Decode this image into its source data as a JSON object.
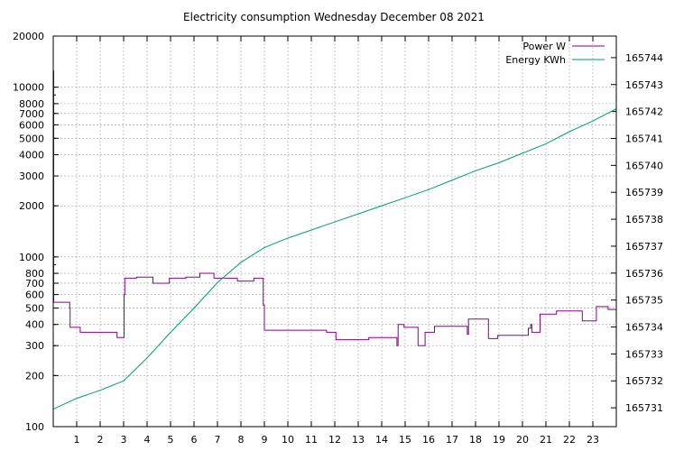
{
  "chart_data": {
    "type": "line",
    "title": "Electricity consumption Wednesday December 08 2021",
    "xlabel": "",
    "ylabel": "",
    "y2label": "",
    "grid": true,
    "legend_position": "top-right",
    "x_range": [
      0,
      24
    ],
    "x_ticks": [
      "1",
      "2",
      "3",
      "4",
      "5",
      "6",
      "7",
      "8",
      "9",
      "10",
      "11",
      "12",
      "13",
      "14",
      "15",
      "16",
      "17",
      "18",
      "19",
      "20",
      "21",
      "22",
      "23"
    ],
    "y_scale": "log",
    "y_range": [
      100,
      20000
    ],
    "y_ticks": [
      "100",
      "200",
      "300",
      "400",
      "500",
      "600",
      "700",
      "800",
      "1000",
      "2000",
      "3000",
      "4000",
      "5000",
      "6000",
      "7000",
      "8000",
      "10000",
      "20000"
    ],
    "y2_range": [
      165730.3,
      165744.8
    ],
    "y2_ticks": [
      "165731",
      "165732",
      "165733",
      "165734",
      "165735",
      "165736",
      "165737",
      "165738",
      "165739",
      "165740",
      "165741",
      "165742",
      "165743",
      "165744"
    ],
    "series": [
      {
        "name": "Power W",
        "axis": "left",
        "color": "#8b008b",
        "step": true,
        "points": [
          [
            0,
            12500
          ],
          [
            0.02,
            540
          ],
          [
            0.65,
            540
          ],
          [
            0.7,
            500
          ],
          [
            0.72,
            385
          ],
          [
            1.1,
            385
          ],
          [
            1.15,
            360
          ],
          [
            2.7,
            360
          ],
          [
            2.72,
            335
          ],
          [
            3.0,
            335
          ],
          [
            3.02,
            600
          ],
          [
            3.05,
            750
          ],
          [
            3.5,
            750
          ],
          [
            3.55,
            760
          ],
          [
            4.2,
            760
          ],
          [
            4.25,
            700
          ],
          [
            4.9,
            700
          ],
          [
            4.95,
            750
          ],
          [
            5.6,
            750
          ],
          [
            5.65,
            760
          ],
          [
            6.2,
            760
          ],
          [
            6.25,
            800
          ],
          [
            6.8,
            800
          ],
          [
            6.85,
            750
          ],
          [
            7.8,
            750
          ],
          [
            7.85,
            720
          ],
          [
            8.5,
            720
          ],
          [
            8.55,
            750
          ],
          [
            8.9,
            750
          ],
          [
            8.95,
            520
          ],
          [
            9.0,
            370
          ],
          [
            11.6,
            370
          ],
          [
            11.65,
            360
          ],
          [
            12.0,
            360
          ],
          [
            12.05,
            325
          ],
          [
            13.4,
            325
          ],
          [
            13.45,
            335
          ],
          [
            14.6,
            335
          ],
          [
            14.65,
            300
          ],
          [
            14.7,
            400
          ],
          [
            14.9,
            400
          ],
          [
            14.95,
            385
          ],
          [
            15.5,
            385
          ],
          [
            15.55,
            300
          ],
          [
            15.8,
            300
          ],
          [
            15.85,
            360
          ],
          [
            16.2,
            360
          ],
          [
            16.25,
            390
          ],
          [
            17.6,
            390
          ],
          [
            17.65,
            350
          ],
          [
            17.7,
            430
          ],
          [
            18.5,
            430
          ],
          [
            18.55,
            330
          ],
          [
            18.9,
            330
          ],
          [
            18.95,
            345
          ],
          [
            20.2,
            345
          ],
          [
            20.25,
            380
          ],
          [
            20.35,
            400
          ],
          [
            20.4,
            360
          ],
          [
            20.7,
            360
          ],
          [
            20.75,
            460
          ],
          [
            21.4,
            460
          ],
          [
            21.45,
            480
          ],
          [
            22.5,
            480
          ],
          [
            22.55,
            420
          ],
          [
            23.1,
            420
          ],
          [
            23.15,
            510
          ],
          [
            23.6,
            510
          ],
          [
            23.65,
            490
          ],
          [
            24.0,
            490
          ]
        ]
      },
      {
        "name": "Energy KWh",
        "axis": "right",
        "color": "#009e73",
        "step": false,
        "points": [
          [
            0,
            165730.95
          ],
          [
            1,
            165731.35
          ],
          [
            2,
            165731.65
          ],
          [
            3,
            165732.0
          ],
          [
            4,
            165732.85
          ],
          [
            5,
            165733.8
          ],
          [
            6,
            165734.7
          ],
          [
            7,
            165735.65
          ],
          [
            8,
            165736.4
          ],
          [
            9,
            165736.95
          ],
          [
            10,
            165737.3
          ],
          [
            11,
            165737.6
          ],
          [
            12,
            165737.9
          ],
          [
            13,
            165738.2
          ],
          [
            14,
            165738.5
          ],
          [
            15,
            165738.8
          ],
          [
            16,
            165739.1
          ],
          [
            17,
            165739.45
          ],
          [
            18,
            165739.8
          ],
          [
            19,
            165740.1
          ],
          [
            20,
            165740.45
          ],
          [
            21,
            165740.8
          ],
          [
            22,
            165741.25
          ],
          [
            23,
            165741.65
          ],
          [
            24,
            165742.1
          ]
        ]
      }
    ]
  }
}
